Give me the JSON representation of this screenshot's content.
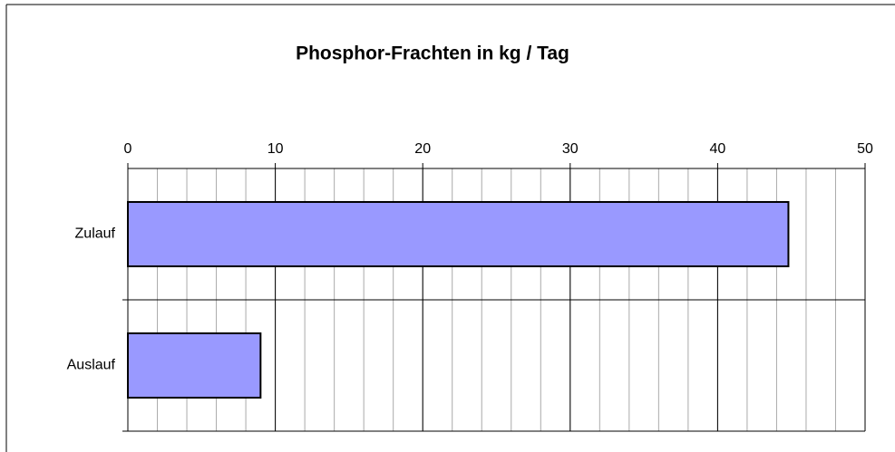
{
  "chart_data": {
    "type": "bar",
    "orientation": "horizontal",
    "title": "Phosphor-Frachten in kg / Tag",
    "categories": [
      "Zulauf",
      "Auslauf"
    ],
    "values": [
      44.8,
      9.0
    ],
    "color": "#9999ff",
    "xlim": [
      0,
      50
    ],
    "xticks": [
      0,
      10,
      20,
      30,
      40,
      50
    ],
    "grid": true,
    "minor_grid_step": 2,
    "axis_position": "top"
  }
}
